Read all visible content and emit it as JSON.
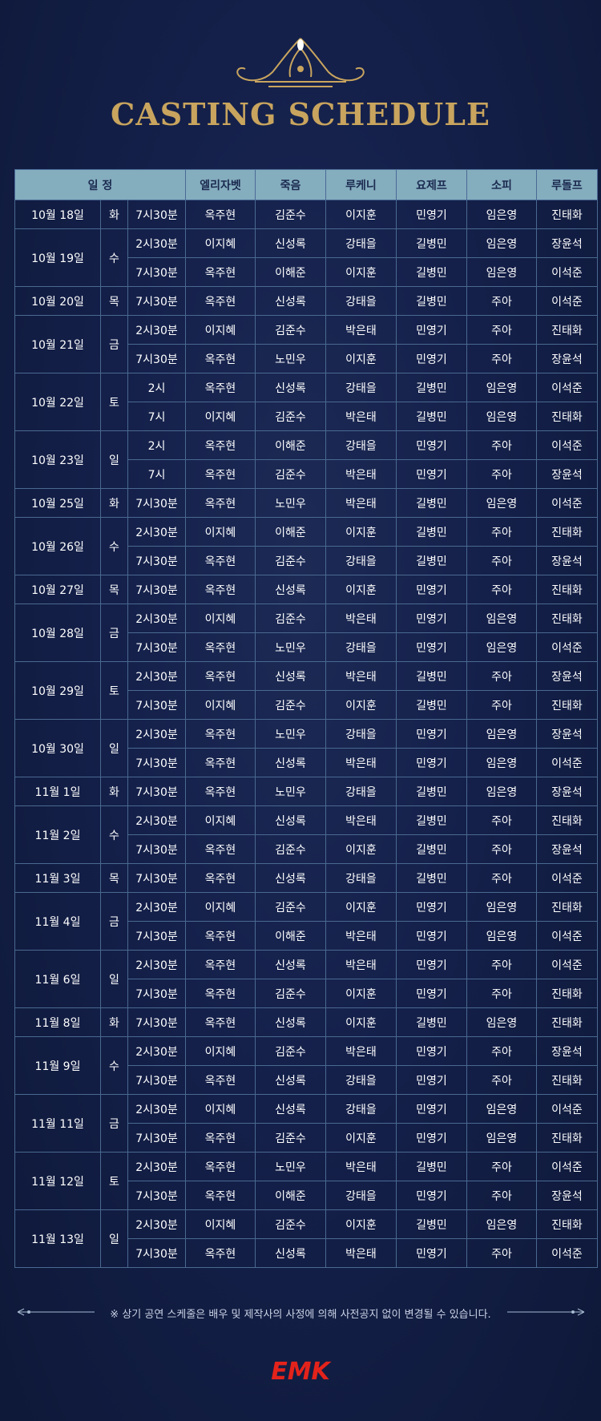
{
  "title": "CASTING SCHEDULE",
  "headers": [
    "일  정",
    "엘리자벳",
    "죽음",
    "루케니",
    "요제프",
    "소피",
    "루돌프"
  ],
  "days": [
    {
      "date": "10월 18일",
      "dow": "화",
      "red": false,
      "shows": [
        [
          "7시30분",
          "옥주현",
          "김준수",
          "이지훈",
          "민영기",
          "임은영",
          "진태화"
        ]
      ]
    },
    {
      "date": "10월 19일",
      "dow": "수",
      "red": false,
      "shows": [
        [
          "2시30분",
          "이지혜",
          "신성록",
          "강태을",
          "길병민",
          "임은영",
          "장윤석"
        ],
        [
          "7시30분",
          "옥주현",
          "이해준",
          "이지훈",
          "길병민",
          "임은영",
          "이석준"
        ]
      ]
    },
    {
      "date": "10월 20일",
      "dow": "목",
      "red": false,
      "shows": [
        [
          "7시30분",
          "옥주현",
          "신성록",
          "강태을",
          "길병민",
          "주아",
          "이석준"
        ]
      ]
    },
    {
      "date": "10월 21일",
      "dow": "금",
      "red": false,
      "shows": [
        [
          "2시30분",
          "이지혜",
          "김준수",
          "박은태",
          "민영기",
          "주아",
          "진태화"
        ],
        [
          "7시30분",
          "옥주현",
          "노민우",
          "이지훈",
          "민영기",
          "주아",
          "장윤석"
        ]
      ]
    },
    {
      "date": "10월 22일",
      "dow": "토",
      "red": false,
      "shows": [
        [
          "2시",
          "옥주현",
          "신성록",
          "강태을",
          "길병민",
          "임은영",
          "이석준"
        ],
        [
          "7시",
          "이지혜",
          "김준수",
          "박은태",
          "길병민",
          "임은영",
          "진태화"
        ]
      ]
    },
    {
      "date": "10월 23일",
      "dow": "일",
      "red": true,
      "shows": [
        [
          "2시",
          "옥주현",
          "이해준",
          "강태을",
          "민영기",
          "주아",
          "이석준"
        ],
        [
          "7시",
          "옥주현",
          "김준수",
          "박은태",
          "민영기",
          "주아",
          "장윤석"
        ]
      ]
    },
    {
      "date": "10월 25일",
      "dow": "화",
      "red": false,
      "shows": [
        [
          "7시30분",
          "옥주현",
          "노민우",
          "박은태",
          "길병민",
          "임은영",
          "이석준"
        ]
      ]
    },
    {
      "date": "10월 26일",
      "dow": "수",
      "red": false,
      "shows": [
        [
          "2시30분",
          "이지혜",
          "이해준",
          "이지훈",
          "길병민",
          "주아",
          "진태화"
        ],
        [
          "7시30분",
          "옥주현",
          "김준수",
          "강태을",
          "길병민",
          "주아",
          "장윤석"
        ]
      ]
    },
    {
      "date": "10월 27일",
      "dow": "목",
      "red": false,
      "shows": [
        [
          "7시30분",
          "옥주현",
          "신성록",
          "이지훈",
          "민영기",
          "주아",
          "진태화"
        ]
      ]
    },
    {
      "date": "10월 28일",
      "dow": "금",
      "red": false,
      "shows": [
        [
          "2시30분",
          "이지혜",
          "김준수",
          "박은태",
          "민영기",
          "임은영",
          "진태화"
        ],
        [
          "7시30분",
          "옥주현",
          "노민우",
          "강태을",
          "민영기",
          "임은영",
          "이석준"
        ]
      ]
    },
    {
      "date": "10월 29일",
      "dow": "토",
      "red": false,
      "shows": [
        [
          "2시30분",
          "옥주현",
          "신성록",
          "박은태",
          "길병민",
          "주아",
          "장윤석"
        ],
        [
          "7시30분",
          "이지혜",
          "김준수",
          "이지훈",
          "길병민",
          "주아",
          "진태화"
        ]
      ]
    },
    {
      "date": "10월 30일",
      "dow": "일",
      "red": true,
      "shows": [
        [
          "2시30분",
          "옥주현",
          "노민우",
          "강태을",
          "민영기",
          "임은영",
          "장윤석"
        ],
        [
          "7시30분",
          "옥주현",
          "신성록",
          "박은태",
          "민영기",
          "임은영",
          "이석준"
        ]
      ]
    },
    {
      "date": "11월 1일",
      "dow": "화",
      "red": false,
      "shows": [
        [
          "7시30분",
          "옥주현",
          "노민우",
          "강태을",
          "길병민",
          "임은영",
          "장윤석"
        ]
      ]
    },
    {
      "date": "11월 2일",
      "dow": "수",
      "red": false,
      "shows": [
        [
          "2시30분",
          "이지혜",
          "신성록",
          "박은태",
          "길병민",
          "주아",
          "진태화"
        ],
        [
          "7시30분",
          "옥주현",
          "김준수",
          "이지훈",
          "길병민",
          "주아",
          "장윤석"
        ]
      ]
    },
    {
      "date": "11월 3일",
      "dow": "목",
      "red": false,
      "shows": [
        [
          "7시30분",
          "옥주현",
          "신성록",
          "강태을",
          "길병민",
          "주아",
          "이석준"
        ]
      ]
    },
    {
      "date": "11월 4일",
      "dow": "금",
      "red": false,
      "shows": [
        [
          "2시30분",
          "이지혜",
          "김준수",
          "이지훈",
          "민영기",
          "임은영",
          "진태화"
        ],
        [
          "7시30분",
          "옥주현",
          "이해준",
          "박은태",
          "민영기",
          "임은영",
          "이석준"
        ]
      ]
    },
    {
      "date": "11월 6일",
      "dow": "일",
      "red": true,
      "shows": [
        [
          "2시30분",
          "옥주현",
          "신성록",
          "박은태",
          "민영기",
          "주아",
          "이석준"
        ],
        [
          "7시30분",
          "옥주현",
          "김준수",
          "이지훈",
          "민영기",
          "주아",
          "진태화"
        ]
      ]
    },
    {
      "date": "11월 8일",
      "dow": "화",
      "red": false,
      "shows": [
        [
          "7시30분",
          "옥주현",
          "신성록",
          "이지훈",
          "길병민",
          "임은영",
          "진태화"
        ]
      ]
    },
    {
      "date": "11월 9일",
      "dow": "수",
      "red": false,
      "shows": [
        [
          "2시30분",
          "이지혜",
          "김준수",
          "박은태",
          "민영기",
          "주아",
          "장윤석"
        ],
        [
          "7시30분",
          "옥주현",
          "신성록",
          "강태을",
          "민영기",
          "주아",
          "진태화"
        ]
      ]
    },
    {
      "date": "11월 11일",
      "dow": "금",
      "red": false,
      "shows": [
        [
          "2시30분",
          "이지혜",
          "신성록",
          "강태을",
          "민영기",
          "임은영",
          "이석준"
        ],
        [
          "7시30분",
          "옥주현",
          "김준수",
          "이지훈",
          "민영기",
          "임은영",
          "진태화"
        ]
      ]
    },
    {
      "date": "11월 12일",
      "dow": "토",
      "red": false,
      "shows": [
        [
          "2시30분",
          "옥주현",
          "노민우",
          "박은태",
          "길병민",
          "주아",
          "이석준"
        ],
        [
          "7시30분",
          "옥주현",
          "이해준",
          "강태을",
          "민영기",
          "주아",
          "장윤석"
        ]
      ]
    },
    {
      "date": "11월 13일",
      "dow": "일",
      "red": true,
      "shows": [
        [
          "2시30분",
          "이지혜",
          "김준수",
          "이지훈",
          "길병민",
          "임은영",
          "진태화"
        ],
        [
          "7시30분",
          "옥주현",
          "신성록",
          "박은태",
          "민영기",
          "주아",
          "이석준"
        ]
      ]
    }
  ],
  "note": "※ 상기 공연 스케줄은 배우 및 제작사의 사정에 의해 사전공지 없이 변경될 수 있습니다.",
  "logo": "EMK",
  "colors": {
    "gold": "#c8a45e",
    "header_bg": "#84adbe",
    "weekend_red": "#f02a2a",
    "logo_red": "#e3231b"
  }
}
